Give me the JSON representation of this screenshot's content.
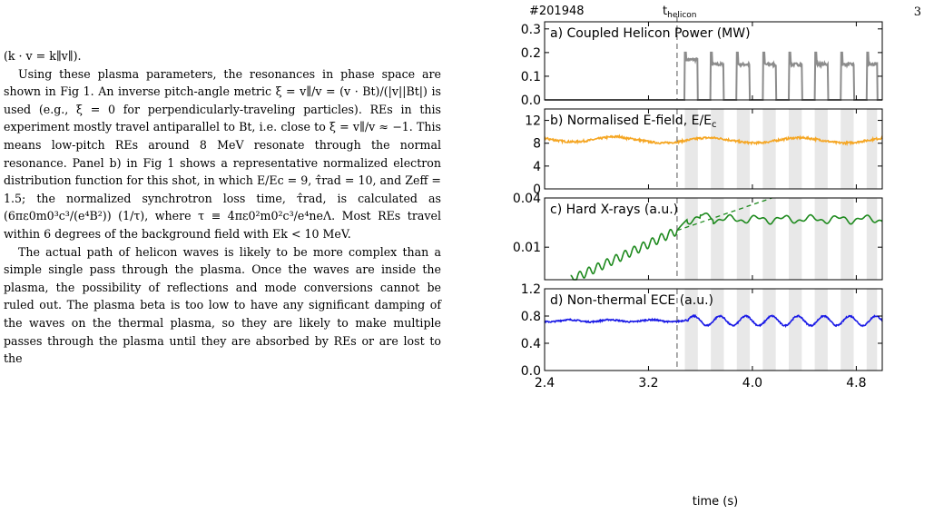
{
  "page_number": "3",
  "text": {
    "line0": "(k · v = k∥v∥).",
    "para1": "Using these plasma parameters, the resonances in phase space are shown in Fig 1. An inverse pitch-angle metric ξ = v∥/v = (v · Bt)/(|v||Bt|) is used (e.g., ξ = 0 for perpendicularly-traveling particles). REs in this experiment mostly travel antiparallel to Bt, i.e. close to ξ = v∥/v ≈ −1. This means low-pitch REs around 8 MeV resonate through the normal resonance. Panel b) in Fig 1 shows a representative normalized electron distribution function for this shot, in which E/Ec = 9, τ̂rad = 10, and Zeff = 1.5; the normalized synchrotron loss time, τ̂rad, is calculated as (6πε0m0³c³/(e⁴B²)) (1/τ), where τ ≡ 4πε0²m0²c³/e⁴neΛ. Most REs travel within 6 degrees of the background field with Ek < 10 MeV.",
    "para2": "The actual path of helicon waves is likely to be more complex than a simple single pass through the plasma. Once the waves are inside the plasma, the possibility of reflections and mode conversions cannot be ruled out. The plasma beta is too low to have any significant damping of the waves on the thermal plasma, so they are likely to make multiple passes through the plasma until they are absorbed by REs or are lost to the"
  },
  "figure": {
    "shot_label": "#201948",
    "marker_label": "t",
    "marker_sub": "helicon",
    "xlabel": "time (s)",
    "colors": {
      "a": "#8c8c8c",
      "b": "#f5a623",
      "c": "#1e8a1e",
      "d": "#1a1ae6",
      "shade": "#e8e8e8"
    }
  },
  "chart_data": {
    "type": "line",
    "x_range": [
      2.4,
      5.0
    ],
    "x_ticks": [
      "2.4",
      "3.2",
      "4.0",
      "4.8"
    ],
    "x_tick_values": [
      2.4,
      3.2,
      4.0,
      4.8
    ],
    "helicon_time": 3.42,
    "helicon_pulses": [
      [
        3.48,
        3.58
      ],
      [
        3.68,
        3.78
      ],
      [
        3.88,
        3.98
      ],
      [
        4.08,
        4.18
      ],
      [
        4.28,
        4.38
      ],
      [
        4.48,
        4.58
      ],
      [
        4.68,
        4.78
      ],
      [
        4.88,
        4.96
      ]
    ],
    "panels": [
      {
        "key": "a",
        "title": "a) Coupled Helicon Power (MW)",
        "ylim": [
          0,
          0.33
        ],
        "y_ticks": [
          "0.0",
          "0.1",
          "0.2",
          "0.3"
        ],
        "y_tick_values": [
          0,
          0.1,
          0.2,
          0.3
        ],
        "pulse_level": 0.15,
        "pulse_start_spike": 0.2,
        "first_pulse_level": 0.17
      },
      {
        "key": "b",
        "title": "b) Normalised E-field, E/E",
        "title_sub": "c",
        "ylim": [
          0,
          14
        ],
        "y_ticks": [
          "0",
          "4",
          "8",
          "12"
        ],
        "y_tick_values": [
          0,
          4,
          8,
          12
        ],
        "base_level": 8.5
      },
      {
        "key": "c",
        "title": "c) Hard X-rays (a.u.)",
        "ylim": [
          0.004,
          0.04
        ],
        "y_ticks": [
          "0.01",
          "0.04"
        ],
        "y_tick_values": [
          0.01,
          0.04
        ],
        "log": true,
        "plateau_level": 0.022,
        "start_level": 0.004,
        "level_at_helicon": 0.016
      },
      {
        "key": "d",
        "title": "d) Non-thermal ECE (a.u.)",
        "ylim": [
          0,
          1.2
        ],
        "y_ticks": [
          "0.0",
          "0.4",
          "0.8",
          "1.2"
        ],
        "y_tick_values": [
          0,
          0.4,
          0.8,
          1.2
        ],
        "base_level": 0.73
      }
    ]
  }
}
